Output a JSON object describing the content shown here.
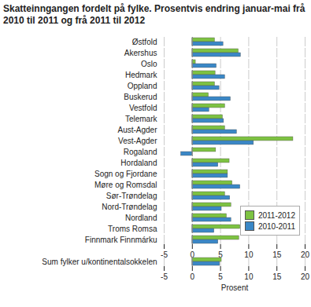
{
  "chart_data": {
    "type": "bar",
    "orientation": "horizontal",
    "title": "Skatteinngangen fordelt på fylke. Prosentvis endring januar-mai frå 2010 til 2011 og frå 2011 til 2012",
    "x_label": "Prosent",
    "categories": [
      "Østfold",
      "Akershus",
      "Oslo",
      "Hedmark",
      "Oppland",
      "Buskerud",
      "Vestfold",
      "Telemark",
      "Aust-Agder",
      "Vest-Agder",
      "Rogaland",
      "Hordaland",
      "Sogn og Fjordane",
      "Møre og Romsdal",
      "Sør-Trøndelag",
      "Nord-Trøndelag",
      "Nordland",
      "Troms Romsa",
      "Finnmark Finnmárku",
      null,
      "Sum fylker u/kontinentalsokkelen"
    ],
    "series": [
      {
        "name": "2011-2012",
        "color": "#7dc242",
        "values": [
          4.0,
          8.2,
          0.6,
          4.1,
          4.0,
          2.9,
          5.8,
          5.4,
          5.8,
          17.9,
          4.2,
          6.6,
          6.3,
          7.1,
          5.8,
          6.9,
          6.1,
          8.5,
          8.3,
          null,
          5.2
        ]
      },
      {
        "name": "2010-2011",
        "color": "#3a87c6",
        "values": [
          5.5,
          8.6,
          4.3,
          5.8,
          4.8,
          6.8,
          3.0,
          5.6,
          7.9,
          10.9,
          -2.0,
          4.6,
          6.3,
          8.5,
          6.7,
          5.2,
          6.9,
          3.9,
          4.6,
          null,
          4.9
        ]
      }
    ],
    "xlim": [
      -5,
      20
    ],
    "xticks": [
      -5,
      0,
      5,
      10,
      15,
      20
    ],
    "grid": true,
    "legend": "right"
  }
}
